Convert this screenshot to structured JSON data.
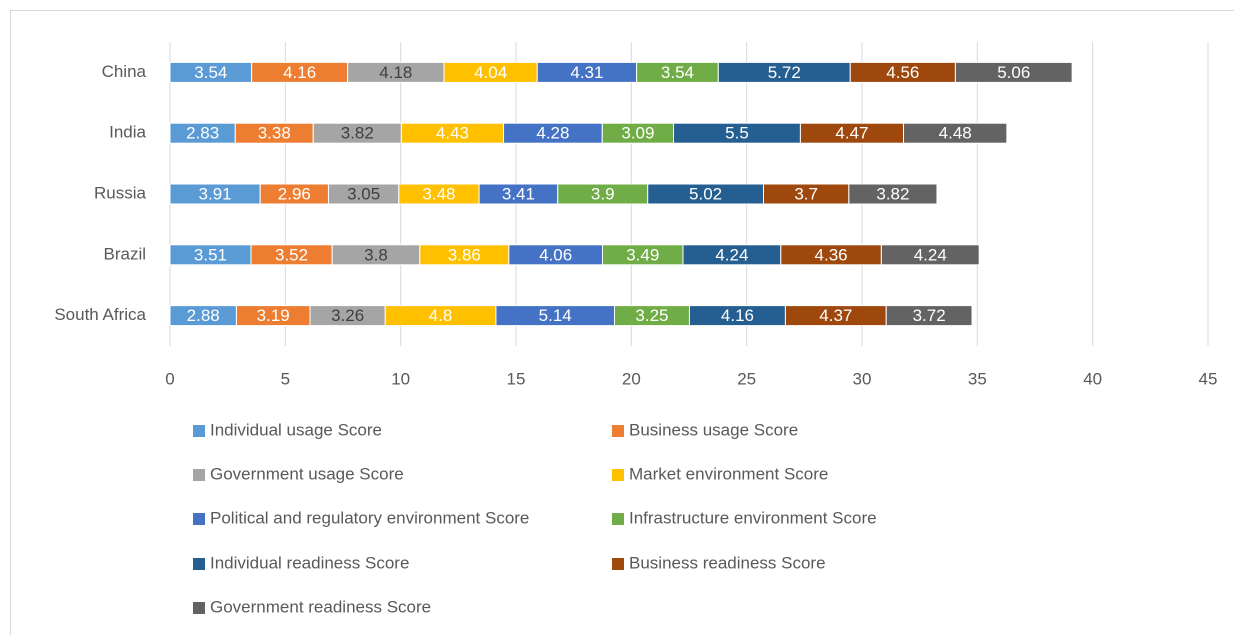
{
  "chart_data": {
    "type": "stacked_bar_horizontal",
    "categories": [
      "China",
      "India",
      "Russia",
      "Brazil",
      "South Africa"
    ],
    "series": [
      {
        "name": "Individual usage Score",
        "color": "#5b9bd5",
        "values": [
          3.54,
          2.83,
          3.91,
          3.51,
          2.88
        ]
      },
      {
        "name": "Business usage Score",
        "color": "#ed7d31",
        "values": [
          4.16,
          3.38,
          2.96,
          3.52,
          3.19
        ]
      },
      {
        "name": "Government usage Score",
        "color": "#a5a5a5",
        "values": [
          4.18,
          3.82,
          3.05,
          3.8,
          3.26
        ]
      },
      {
        "name": "Market environment Score",
        "color": "#ffc000",
        "values": [
          4.04,
          4.43,
          3.48,
          3.86,
          4.8
        ]
      },
      {
        "name": "Political and regulatory environment Score",
        "color": "#4472c4",
        "values": [
          4.31,
          4.28,
          3.41,
          4.06,
          5.14
        ]
      },
      {
        "name": "Infrastructure environment Score",
        "color": "#70ad47",
        "values": [
          3.54,
          3.09,
          3.9,
          3.49,
          3.25
        ]
      },
      {
        "name": "Individual readiness Score",
        "color": "#255e91",
        "values": [
          5.72,
          5.5,
          5.02,
          4.24,
          4.16
        ]
      },
      {
        "name": "Business readiness Score",
        "color": "#9e480e",
        "values": [
          4.56,
          4.47,
          3.7,
          4.36,
          4.37
        ]
      },
      {
        "name": "Government readiness Score",
        "color": "#636363",
        "values": [
          5.06,
          4.48,
          3.82,
          4.24,
          3.72
        ]
      }
    ],
    "xlim": [
      0,
      45
    ],
    "xticks": [
      0,
      5,
      10,
      15,
      20,
      25,
      30,
      35,
      40,
      45
    ],
    "grid": true
  }
}
